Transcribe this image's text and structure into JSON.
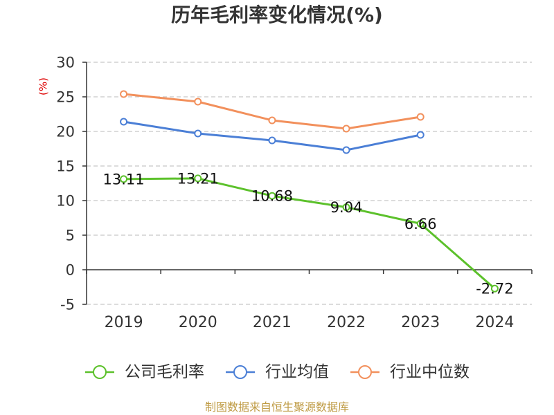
{
  "chart_data": {
    "type": "line",
    "title": "历年毛利率变化情况(%)",
    "xlabel": "",
    "ylabel": "(%)",
    "categories": [
      "2019",
      "2020",
      "2021",
      "2022",
      "2023",
      "2024"
    ],
    "ylim": [
      -5,
      30
    ],
    "yticks": [
      30,
      25,
      20,
      15,
      10,
      5,
      0,
      -5
    ],
    "grid": true,
    "legend": "bottom",
    "series": [
      {
        "name": "公司毛利率",
        "color": "#5cc12b",
        "values": [
          13.11,
          13.21,
          10.68,
          9.04,
          6.66,
          -2.72
        ],
        "show_labels": true
      },
      {
        "name": "行业均值",
        "color": "#4b7fd6",
        "values": [
          21.4,
          19.7,
          18.7,
          17.3,
          19.5,
          null
        ],
        "show_labels": false
      },
      {
        "name": "行业中位数",
        "color": "#f2905c",
        "values": [
          25.4,
          24.3,
          21.6,
          20.4,
          22.1,
          null
        ],
        "show_labels": false
      }
    ]
  },
  "footer": {
    "source": "制图数据来自恒生聚源数据库"
  }
}
